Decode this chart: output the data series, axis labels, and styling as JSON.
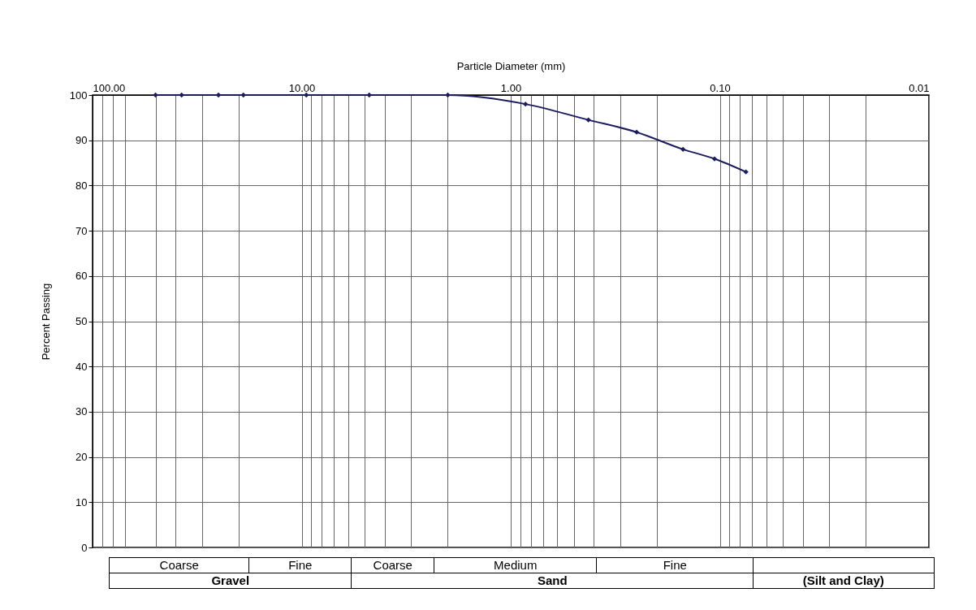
{
  "chart_data": {
    "type": "line",
    "xlabel": "Particle Diameter (mm)",
    "ylabel": "Percent Passing",
    "x": [
      50,
      37.5,
      25,
      19,
      9.5,
      4.75,
      2,
      0.85,
      0.425,
      0.25,
      0.15,
      0.106,
      0.075
    ],
    "series": [
      {
        "color": "#1c1c5e",
        "values": [
          100,
          100,
          100,
          100,
          100,
          100,
          100,
          98,
          94.5,
          91.8,
          88,
          85.9,
          83
        ]
      }
    ],
    "log": "x",
    "xlim": [
      100,
      0.01
    ],
    "ylim": [
      0,
      100
    ],
    "xticks": [
      {
        "value": 100,
        "label": "100.00"
      },
      {
        "value": 90,
        "label": null
      },
      {
        "value": 80,
        "label": null
      },
      {
        "value": 70,
        "label": null
      },
      {
        "value": 50,
        "label": null
      },
      {
        "value": 40,
        "label": null
      },
      {
        "value": 30,
        "label": null
      },
      {
        "value": 20,
        "label": null
      },
      {
        "value": 10,
        "label": "10.00"
      },
      {
        "value": 9,
        "label": null
      },
      {
        "value": 8,
        "label": null
      },
      {
        "value": 7,
        "label": null
      },
      {
        "value": 6,
        "label": null
      },
      {
        "value": 5,
        "label": null
      },
      {
        "value": 4,
        "label": null
      },
      {
        "value": 3,
        "label": null
      },
      {
        "value": 2,
        "label": null
      },
      {
        "value": 1,
        "label": "1.00"
      },
      {
        "value": 0.9,
        "label": null
      },
      {
        "value": 0.8,
        "label": null
      },
      {
        "value": 0.7,
        "label": null
      },
      {
        "value": 0.6,
        "label": null
      },
      {
        "value": 0.5,
        "label": null
      },
      {
        "value": 0.4,
        "label": null
      },
      {
        "value": 0.3,
        "label": null
      },
      {
        "value": 0.2,
        "label": null
      },
      {
        "value": 0.1,
        "label": "0.10"
      },
      {
        "value": 0.09,
        "label": null
      },
      {
        "value": 0.08,
        "label": null
      },
      {
        "value": 0.07,
        "label": null
      },
      {
        "value": 0.06,
        "label": null
      },
      {
        "value": 0.05,
        "label": null
      },
      {
        "value": 0.04,
        "label": null
      },
      {
        "value": 0.03,
        "label": null
      },
      {
        "value": 0.02,
        "label": null
      },
      {
        "value": 0.01,
        "label": "0.01"
      }
    ],
    "yticks": [
      0,
      10,
      20,
      30,
      40,
      50,
      60,
      70,
      80,
      90,
      100
    ],
    "grid": true,
    "marker": "diamond",
    "line_style": "solid",
    "annotations": [
      "Coarse",
      "Fine",
      "Coarse",
      "Medium",
      "Fine",
      "Gravel",
      "Sand",
      "(Silt and Clay)"
    ]
  }
}
